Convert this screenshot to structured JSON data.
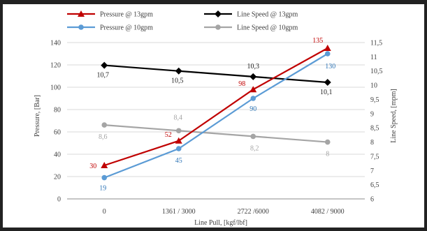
{
  "chart_data": {
    "type": "line",
    "title": "",
    "xlabel": "Line Pull, [kgf/lbf]",
    "ylabel": "Pressure, [Bar]",
    "y2label": "Line Speed, [mpm]",
    "categories": [
      "0",
      "1361 / 3000",
      "2722 /6000",
      "4082 / 9000"
    ],
    "ylim": [
      0,
      140
    ],
    "y_ticks": [
      "0",
      "20",
      "40",
      "60",
      "80",
      "100",
      "120",
      "140"
    ],
    "y2lim": [
      6,
      11.5
    ],
    "y2_ticks": [
      "6",
      "6,5",
      "7",
      "7,5",
      "8",
      "8,5",
      "9",
      "9,5",
      "10",
      "10,5",
      "11",
      "11,5"
    ],
    "grid": true,
    "legend_position": "top",
    "series": [
      {
        "name": "Pressure @ 13gpm",
        "axis": "left",
        "color": "#c00000",
        "marker": "triangle",
        "values": [
          30,
          52,
          98,
          135
        ],
        "labels": [
          "30",
          "52",
          "98",
          "135"
        ],
        "label_color": "#c00000"
      },
      {
        "name": "Line Speed @ 13gpm",
        "axis": "right",
        "color": "#000000",
        "marker": "diamond",
        "values": [
          10.7,
          10.5,
          10.3,
          10.1
        ],
        "labels": [
          "10,7",
          "10,5",
          "10,3",
          "10,1"
        ],
        "label_color": "#222222"
      },
      {
        "name": "Pressure @ 10gpm",
        "axis": "left",
        "color": "#5b9bd5",
        "marker": "circle",
        "values": [
          19,
          45,
          90,
          130
        ],
        "labels": [
          "19",
          "45",
          "90",
          "130"
        ],
        "label_color": "#2e75b6"
      },
      {
        "name": "Line Speed @ 10gpm",
        "axis": "right",
        "color": "#a5a5a5",
        "marker": "circle",
        "values": [
          8.6,
          8.4,
          8.2,
          8.0
        ],
        "labels": [
          "8,6",
          "8,4",
          "8,2",
          "8"
        ],
        "label_color": "#a5a5a5"
      }
    ]
  }
}
